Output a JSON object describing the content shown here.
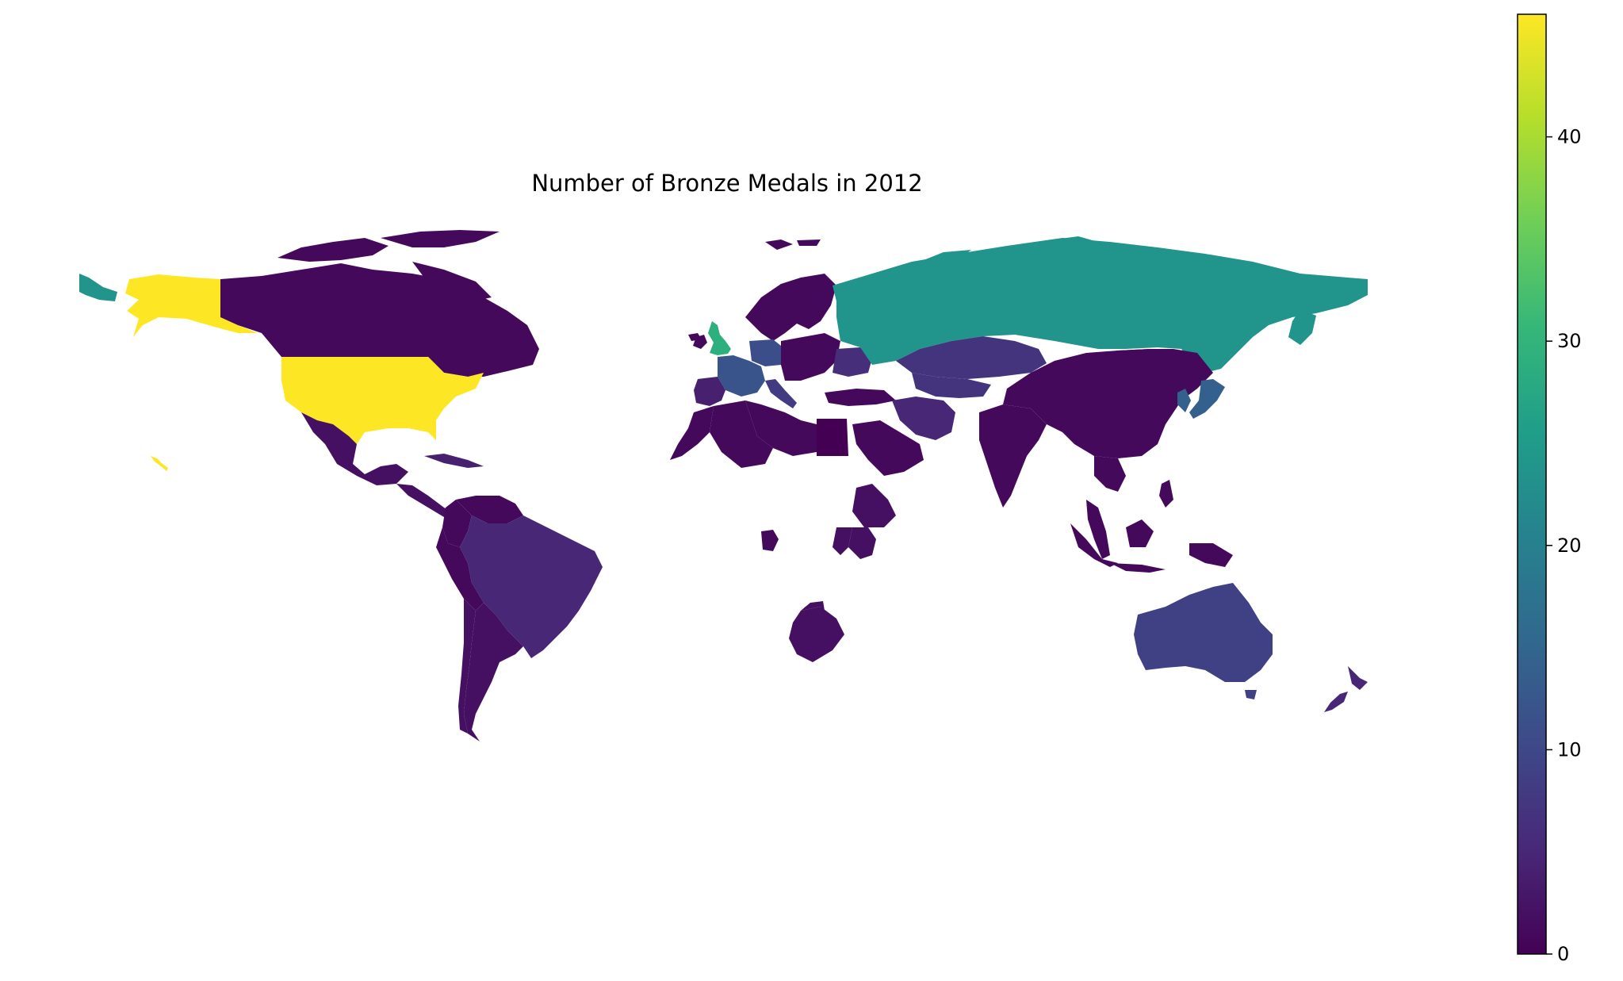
{
  "chart_data": {
    "type": "choropleth",
    "title": "Number of Bronze Medals in 2012",
    "colormap": "viridis",
    "vmin": 0,
    "vmax": 46,
    "colorbar_ticks": [
      0,
      10,
      20,
      30,
      40
    ],
    "colorbar_tick_labels": [
      "0",
      "10",
      "20",
      "30",
      "40"
    ],
    "legend": "colorbar-right",
    "grid": false,
    "regions": [
      {
        "name": "United States",
        "value": 46
      },
      {
        "name": "Russia",
        "value": 24
      },
      {
        "name": "United Kingdom",
        "value": 29
      },
      {
        "name": "France",
        "value": 12
      },
      {
        "name": "Germany",
        "value": 11
      },
      {
        "name": "Japan",
        "value": 14
      },
      {
        "name": "Australia",
        "value": 9
      },
      {
        "name": "Kazakhstan",
        "value": 7
      },
      {
        "name": "Iran",
        "value": 5
      },
      {
        "name": "Brazil",
        "value": 5
      },
      {
        "name": "New Zealand",
        "value": 5
      },
      {
        "name": "Canada",
        "value": 1
      },
      {
        "name": "China",
        "value": 1
      },
      {
        "name": "Mexico",
        "value": 2
      },
      {
        "name": "Argentina",
        "value": 2
      },
      {
        "name": "India",
        "value": 1
      },
      {
        "name": "Kenya",
        "value": 2
      },
      {
        "name": "Ethiopia",
        "value": 2
      },
      {
        "name": "South Africa",
        "value": 2
      },
      {
        "name": "Egypt",
        "value": 0
      },
      {
        "name": "Indonesia",
        "value": 1
      },
      {
        "name": "Turkey",
        "value": 1
      },
      {
        "name": "Algeria",
        "value": 1
      },
      {
        "name": "Saudi Arabia",
        "value": 1
      },
      {
        "name": "Venezuela",
        "value": 1
      },
      {
        "name": "Colombia",
        "value": 1
      },
      {
        "name": "Scandinavia",
        "value": 1
      },
      {
        "name": "Ukraine",
        "value": 6
      },
      {
        "name": "Italy",
        "value": 8
      },
      {
        "name": "Spain",
        "value": 4
      },
      {
        "name": "Cuba",
        "value": 4
      }
    ]
  }
}
